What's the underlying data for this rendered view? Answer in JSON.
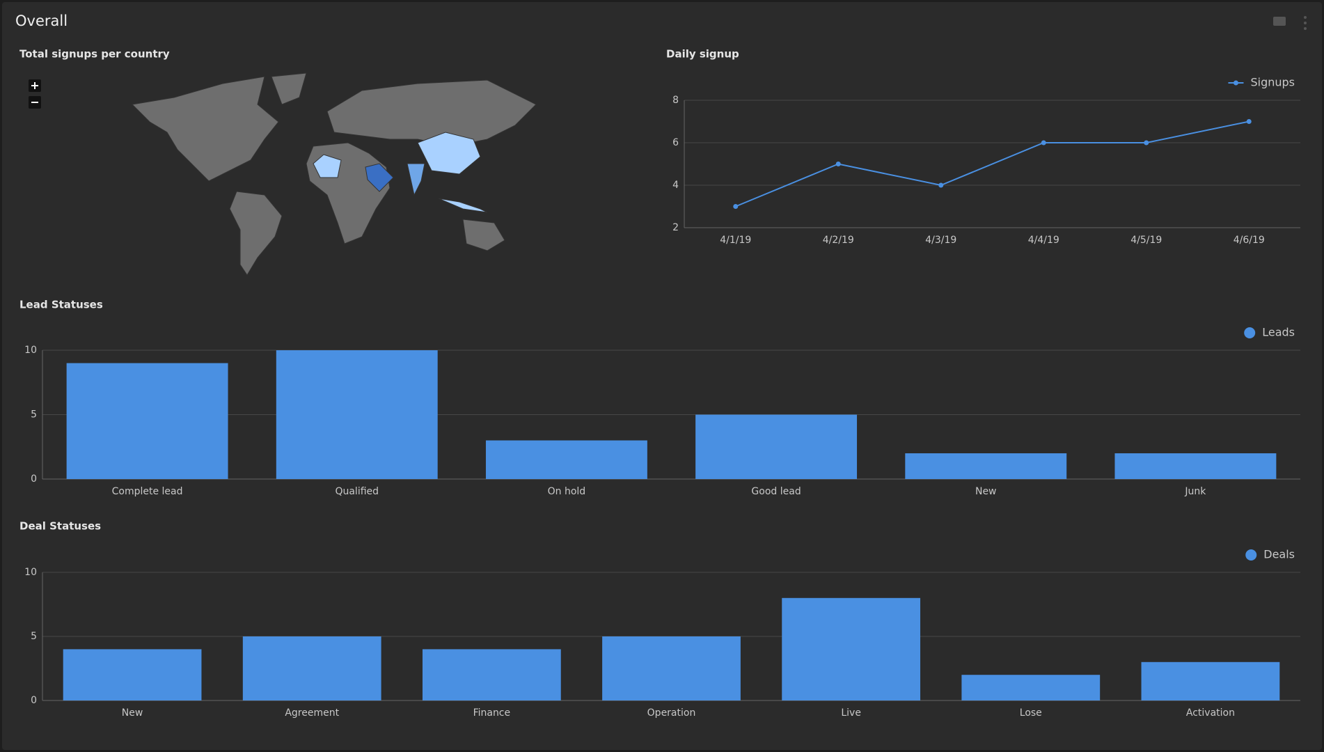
{
  "title": "Overall",
  "map": {
    "title": "Total signups per country"
  },
  "chart_data": [
    {
      "type": "line",
      "title": "Daily signup",
      "categories": [
        "4/1/19",
        "4/2/19",
        "4/3/19",
        "4/4/19",
        "4/5/19",
        "4/6/19"
      ],
      "series": [
        {
          "name": "Signups",
          "color": "#4a90e2",
          "values": [
            3,
            5,
            4,
            6,
            6,
            7
          ]
        }
      ],
      "ylim": [
        2,
        8
      ],
      "yticks": [
        2,
        4,
        6,
        8
      ],
      "grid": true,
      "legend": "top-right"
    },
    {
      "type": "bar",
      "title": "Lead Statuses",
      "categories": [
        "Complete lead",
        "Qualified",
        "On hold",
        "Good lead",
        "New",
        "Junk"
      ],
      "series": [
        {
          "name": "Leads",
          "color": "#4a90e2",
          "values": [
            9,
            10,
            3,
            5,
            2,
            2
          ]
        }
      ],
      "ylim": [
        0,
        10
      ],
      "yticks": [
        0,
        5,
        10
      ],
      "grid": true,
      "legend": "top-right"
    },
    {
      "type": "bar",
      "title": "Deal Statuses",
      "categories": [
        "New",
        "Agreement",
        "Finance",
        "Operation",
        "Live",
        "Lose",
        "Activation"
      ],
      "series": [
        {
          "name": "Deals",
          "color": "#4a90e2",
          "values": [
            4,
            5,
            4,
            5,
            8,
            2,
            3
          ]
        }
      ],
      "ylim": [
        0,
        10
      ],
      "yticks": [
        0,
        5,
        10
      ],
      "grid": true,
      "legend": "top-right"
    }
  ]
}
